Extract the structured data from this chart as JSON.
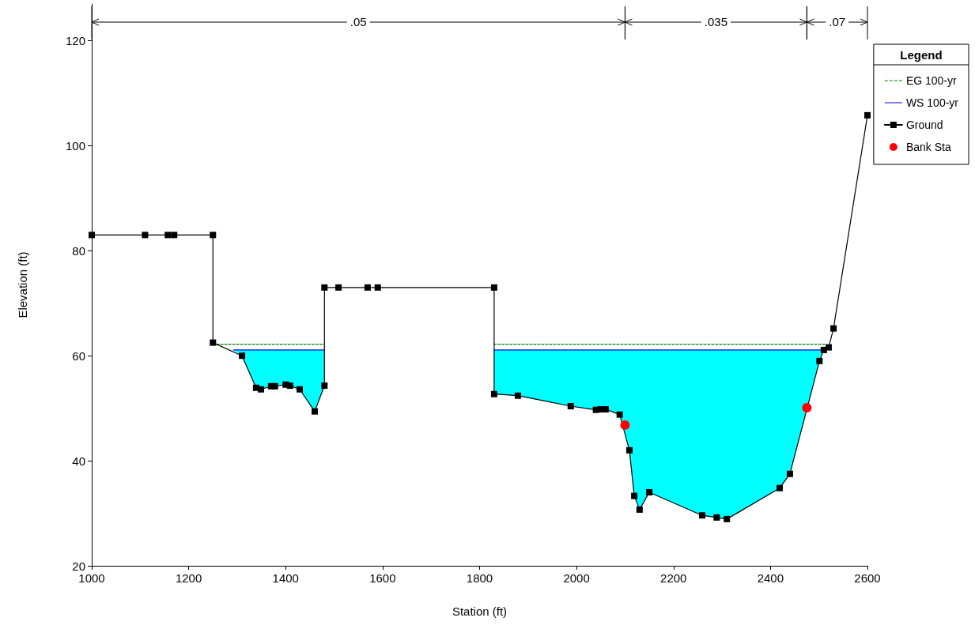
{
  "chart_data": {
    "type": "line",
    "xlabel": "Station (ft)",
    "ylabel": "Elevation (ft)",
    "legend_title": "Legend",
    "xlim": [
      1000,
      2600
    ],
    "xticks": [
      1000,
      1200,
      1400,
      1600,
      1800,
      2000,
      2200,
      2400,
      2600
    ],
    "ylim": [
      20,
      127
    ],
    "yticks": [
      20,
      40,
      60,
      80,
      100,
      120
    ],
    "grid": false,
    "legend": "top right",
    "annotations": [
      ".05",
      ".035",
      ".07"
    ],
    "series": [
      {
        "name": "EG 100-yr",
        "color": "#008000",
        "line_style": "dashed",
        "marker": "none",
        "x": [
          1258,
          1480,
          1650,
          1830,
          2513
        ],
        "values": [
          62.2,
          62.2,
          null,
          62.2,
          62.2
        ]
      },
      {
        "name": "WS 100-yr",
        "color": "#0000ff",
        "line_style": "solid",
        "marker": "none",
        "x": [
          1292,
          1310,
          1339,
          1349,
          1370,
          1378,
          1400,
          1409,
          1429,
          1460,
          1480,
          1650,
          1830,
          1879,
          1988,
          2040,
          2050,
          2060,
          2089,
          2109,
          2119,
          2130,
          2150,
          2259,
          2289,
          2310,
          2419,
          2440,
          2501,
          2509
        ],
        "values": [
          61.1,
          61.1,
          61.1,
          61.1,
          61.1,
          61.1,
          61.1,
          61.1,
          61.1,
          61.1,
          61.1,
          null,
          61.1,
          61.1,
          61.1,
          61.1,
          61.1,
          61.1,
          61.1,
          61.1,
          61.1,
          61.1,
          61.1,
          61.1,
          61.1,
          61.1,
          61.1,
          61.1,
          61.1,
          61.1
        ],
        "lower": [
          61.1,
          60,
          53.9,
          53.6,
          54.2,
          54.2,
          54.5,
          54.3,
          53.6,
          49.4,
          54.3,
          null,
          52.7,
          52.4,
          50.4,
          49.7,
          49.8,
          49.8,
          48.8,
          42,
          33.3,
          30.7,
          34,
          29.6,
          29.2,
          28.9,
          34.8,
          37.5,
          59,
          61.1
        ],
        "upper": [
          61.1,
          61.1,
          61.1,
          61.1,
          61.1,
          61.1,
          61.1,
          61.1,
          61.1,
          61.1,
          61.1,
          null,
          61.1,
          61.1,
          61.1,
          61.1,
          61.1,
          61.1,
          61.1,
          61.1,
          61.1,
          61.1,
          61.1,
          61.1,
          61.1,
          61.1,
          61.1,
          61.1,
          61.1,
          61.1
        ]
      },
      {
        "name": "Ground",
        "color": "#000000",
        "line_style": "solid",
        "marker": "square",
        "x": [
          1000,
          1110,
          1157,
          1170,
          1250,
          1250,
          1310,
          1339,
          1349,
          1370,
          1378,
          1400,
          1409,
          1429,
          1460,
          1480,
          1480,
          1509,
          1569,
          1590,
          1830,
          1830,
          1879,
          1988,
          2040,
          2050,
          2060,
          2089,
          2109,
          2119,
          2130,
          2150,
          2259,
          2289,
          2310,
          2419,
          2440,
          2501,
          2510,
          2520,
          2530,
          2600
        ],
        "values": [
          83,
          83,
          83,
          83,
          83,
          62.5,
          60,
          53.9,
          53.6,
          54.2,
          54.2,
          54.5,
          54.3,
          53.6,
          49.4,
          54.3,
          73,
          73,
          73,
          73,
          73,
          52.7,
          52.4,
          50.4,
          49.7,
          49.8,
          49.8,
          48.8,
          42,
          33.3,
          30.7,
          34,
          29.6,
          29.2,
          28.9,
          34.8,
          37.5,
          59,
          61.1,
          61.6,
          65.2,
          105.8
        ]
      },
      {
        "name": "Bank Sta",
        "type": "scatter",
        "color": "#ff0000",
        "marker": "circle",
        "x": [
          2100,
          2475
        ],
        "values": [
          46.8,
          50.1
        ]
      }
    ]
  }
}
